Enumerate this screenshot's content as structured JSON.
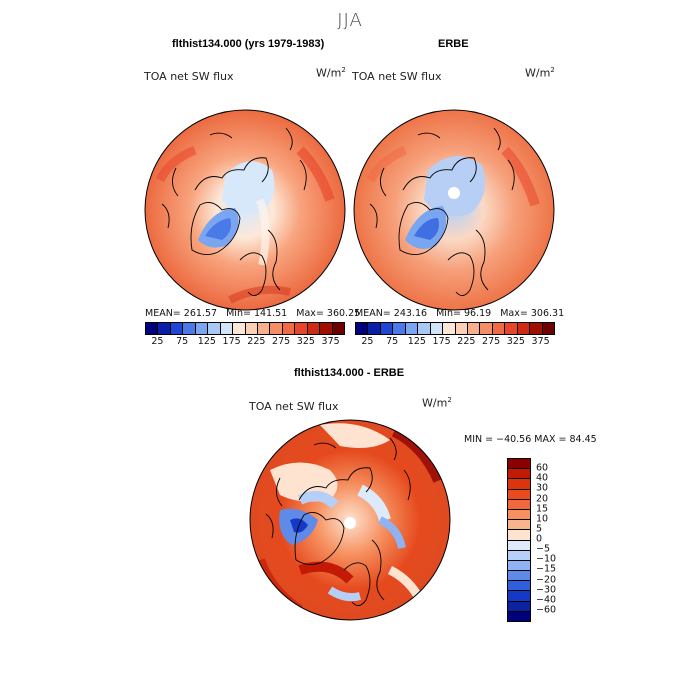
{
  "figure": {
    "season": "JJA"
  },
  "panels": {
    "model": {
      "title": "flthist134.000 (yrs 1979-1983)",
      "variable": "TOA net SW flux",
      "unit_base": "W/m",
      "unit_exp": "2",
      "stats": {
        "mean_label": "MEAN=",
        "mean": "261.57",
        "min_label": "Min=",
        "min": "141.51",
        "max_label": "Max=",
        "max": "360.25"
      }
    },
    "obs": {
      "title": "ERBE",
      "variable": "TOA net SW flux",
      "unit_base": "W/m",
      "unit_exp": "2",
      "stats": {
        "mean_label": "MEAN=",
        "mean": "243.16",
        "min_label": "Min=",
        "min": "96.19",
        "max_label": "Max=",
        "max": "306.31"
      }
    },
    "diff": {
      "title": "flthist134.000 - ERBE",
      "variable": "TOA net SW flux",
      "unit_base": "W/m",
      "unit_exp": "2",
      "minmax": "MIN = −40.56 MAX =  84.45"
    }
  },
  "colorbars": {
    "abs": {
      "ticks": [
        "25",
        "75",
        "125",
        "175",
        "225",
        "275",
        "325",
        "375"
      ],
      "colors": [
        "#00007f",
        "#0a1fa8",
        "#1f47d6",
        "#4a7ae8",
        "#7aa5f0",
        "#a8c8f5",
        "#d2e3fa",
        "#fde8d8",
        "#fbd0b4",
        "#f8b08c",
        "#f58e66",
        "#f06a42",
        "#e8452a",
        "#cf2a14",
        "#a01000",
        "#6e0000"
      ]
    },
    "diff": {
      "labels": [
        "60",
        "40",
        "30",
        "20",
        "15",
        "10",
        "5",
        "0",
        "−5",
        "−10",
        "−15",
        "−20",
        "−30",
        "−40",
        "−60"
      ],
      "colors": [
        "#8a0000",
        "#c21a05",
        "#dd3410",
        "#ea4a1e",
        "#f2683a",
        "#f6905f",
        "#f9b48c",
        "#fde3d0",
        "#ddeafc",
        "#b6cff8",
        "#8fb3f2",
        "#5f8ae8",
        "#2f5fdb",
        "#1539c7",
        "#0c22a0",
        "#00007a"
      ]
    }
  }
}
